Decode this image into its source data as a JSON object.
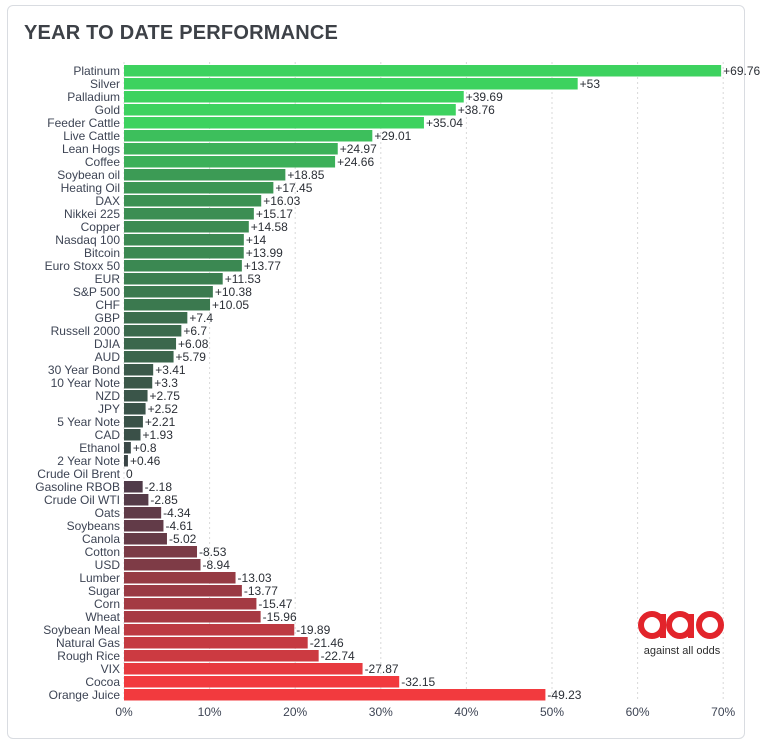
{
  "header": {
    "title": "YEAR TO DATE PERFORMANCE"
  },
  "logo": {
    "text": "against all odds",
    "mark": "aao",
    "color": "#e2242b"
  },
  "chart_data": {
    "type": "bar",
    "orientation": "horizontal",
    "title": "YEAR TO DATE PERFORMANCE",
    "xlabel": "",
    "ylabel": "",
    "xlim": [
      0,
      70
    ],
    "x_ticks": [
      0,
      10,
      20,
      30,
      40,
      50,
      60,
      70
    ],
    "x_tick_labels": [
      "0%",
      "10%",
      "20%",
      "30%",
      "40%",
      "50%",
      "60%",
      "70%"
    ],
    "grid": true,
    "categories": [
      "Platinum",
      "Silver",
      "Palladium",
      "Gold",
      "Feeder Cattle",
      "Live Cattle",
      "Lean Hogs",
      "Coffee",
      "Soybean oil",
      "Heating Oil",
      "DAX",
      "Nikkei 225",
      "Copper",
      "Nasdaq 100",
      "Bitcoin",
      "Euro Stoxx 50",
      "EUR",
      "S&P 500",
      "CHF",
      "GBP",
      "Russell 2000",
      "DJIA",
      "AUD",
      "30 Year Bond",
      "10 Year Note",
      "NZD",
      "JPY",
      "5 Year Note",
      "CAD",
      "Ethanol",
      "2 Year Note",
      "Crude Oil Brent",
      "Gasoline RBOB",
      "Crude Oil WTI",
      "Oats",
      "Soybeans",
      "Canola",
      "Cotton",
      "USD",
      "Lumber",
      "Sugar",
      "Corn",
      "Wheat",
      "Soybean Meal",
      "Natural Gas",
      "Rough Rice",
      "VIX",
      "Cocoa",
      "Orange Juice"
    ],
    "values": [
      69.76,
      53,
      39.69,
      38.76,
      35.04,
      29.01,
      24.97,
      24.66,
      18.85,
      17.45,
      16.03,
      15.17,
      14.58,
      14,
      13.99,
      13.77,
      11.53,
      10.38,
      10.05,
      7.4,
      6.7,
      6.08,
      5.79,
      3.41,
      3.3,
      2.75,
      2.52,
      2.21,
      1.93,
      0.8,
      0.46,
      0,
      -2.18,
      -2.85,
      -4.34,
      -4.61,
      -5.02,
      -8.53,
      -8.94,
      -13.03,
      -13.77,
      -15.47,
      -15.96,
      -19.89,
      -21.46,
      -22.74,
      -27.87,
      -32.15,
      -49.23
    ],
    "value_labels": [
      "+69.76",
      "+53",
      "+39.69",
      "+38.76",
      "+35.04",
      "+29.01",
      "+24.97",
      "+24.66",
      "+18.85",
      "+17.45",
      "+16.03",
      "+15.17",
      "+14.58",
      "+14",
      "+13.99",
      "+13.77",
      "+11.53",
      "+10.38",
      "+10.05",
      "+7.4",
      "+6.7",
      "+6.08",
      "+5.79",
      "+3.41",
      "+3.3",
      "+2.75",
      "+2.52",
      "+2.21",
      "+1.93",
      "+0.8",
      "+0.46",
      "0",
      "-2.18",
      "-2.85",
      "-4.34",
      "-4.61",
      "-5.02",
      "-8.53",
      "-8.94",
      "-13.03",
      "-13.77",
      "-15.47",
      "-15.96",
      "-19.89",
      "-21.46",
      "-22.74",
      "-27.87",
      "-32.15",
      "-49.23"
    ],
    "bar_length": "absolute value",
    "colors": {
      "positive_high": "#3dd25f",
      "positive_low": "#3a3f45",
      "negative_low": "#3d3b4a",
      "negative_high": "#f23a3e",
      "grid": "#d8d8d8"
    }
  }
}
